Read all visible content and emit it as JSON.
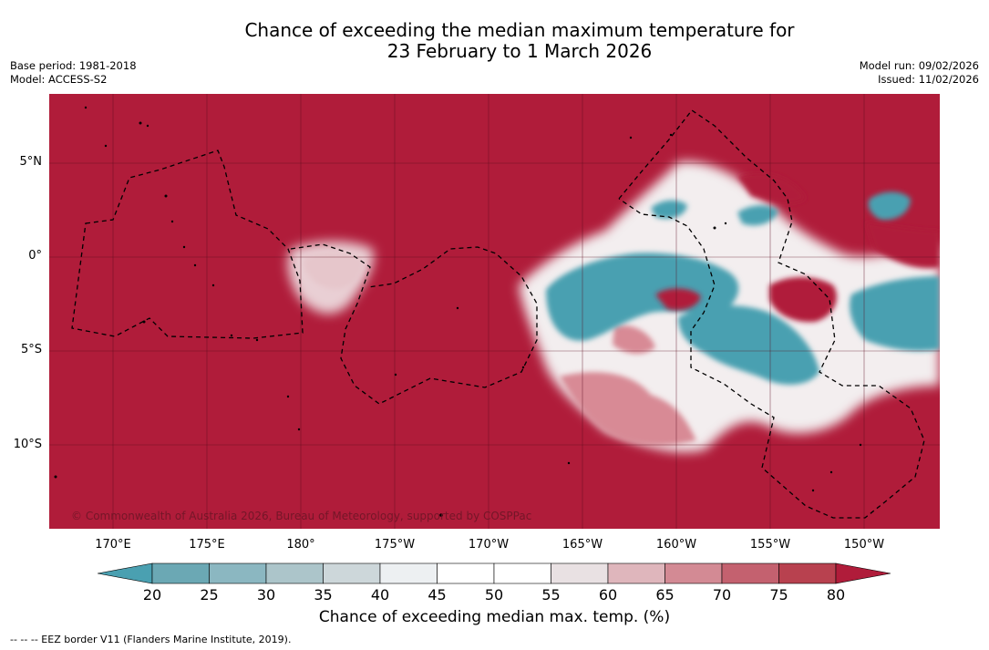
{
  "title": {
    "line1": "Chance of exceeding the median maximum temperature for",
    "line2": "23 February to 1 March 2026"
  },
  "meta_left": {
    "line1": "Base period: 1981-2018",
    "line2": "Model: ACCESS-S2"
  },
  "meta_right": {
    "line1": "Model run: 09/02/2026",
    "line2": "Issued: 11/02/2026"
  },
  "lat_labels": [
    "5°N",
    "0°",
    "5°S",
    "10°S"
  ],
  "lon_labels": [
    "170°E",
    "175°E",
    "180°",
    "175°W",
    "170°W",
    "165°W",
    "160°W",
    "155°W",
    "150°W"
  ],
  "copyright": "© Commonwealth of Australia 2026, Bureau of Meteorology, supported by COSPPac",
  "colorbar": {
    "ticks": [
      "20",
      "25",
      "30",
      "35",
      "40",
      "45",
      "50",
      "55",
      "60",
      "65",
      "70",
      "75",
      "80"
    ],
    "label": "Chance of exceeding median max. temp. (%)",
    "colors": [
      "#4aa0b1",
      "#6ba8b4",
      "#8bb7c1",
      "#acc5ca",
      "#cdd7da",
      "#edf0f2",
      "#ffffff",
      "#ffffff",
      "#e9e1e3",
      "#dfb6bc",
      "#d38a94",
      "#c4616f",
      "#b8414f",
      "#b01c3a"
    ]
  },
  "footer": "--  --  -- EEZ border V11 (Flanders Marine Institute, 2019).",
  "colors": {
    "high": "#b01c3a",
    "low": "#4aa0b1",
    "mid": "#ffffff"
  }
}
